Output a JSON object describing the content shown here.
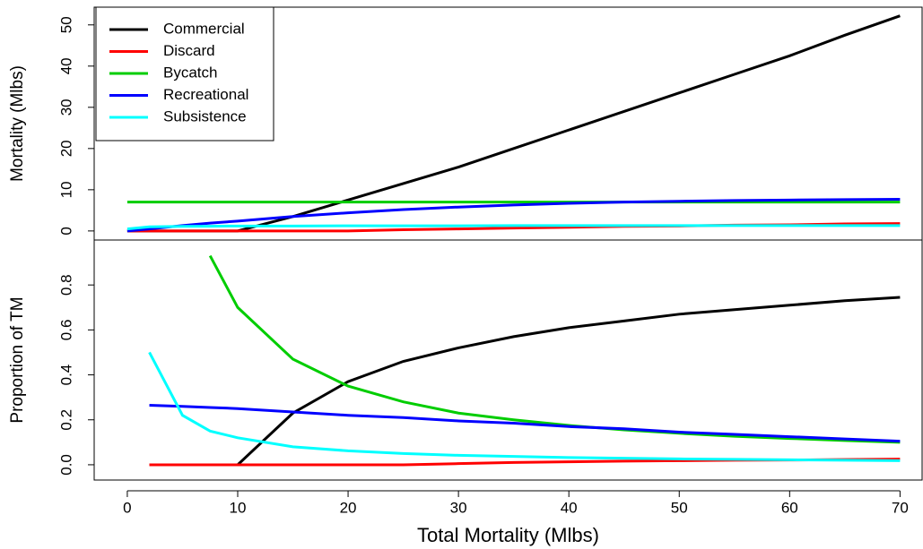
{
  "chart_data": [
    {
      "type": "line",
      "ylabel": "Mortality (Mlbs)",
      "legend": "top-left",
      "x": [
        0,
        2,
        5,
        7.5,
        10,
        15,
        20,
        25,
        30,
        35,
        40,
        45,
        50,
        55,
        60,
        65,
        70
      ],
      "xlim": [
        -3,
        72
      ],
      "ylim": [
        -2.2,
        54.3
      ],
      "yticks": [
        0,
        10,
        20,
        30,
        40,
        50
      ],
      "series": [
        {
          "name": "Commercial",
          "color": "#000000",
          "values": [
            0,
            0,
            0,
            0,
            0,
            3.5,
            7.5,
            11.5,
            15.5,
            20,
            24.5,
            29,
            33.5,
            38,
            42.5,
            47.5,
            52.2
          ]
        },
        {
          "name": "Discard",
          "color": "#ff0000",
          "values": [
            0,
            0,
            0,
            0,
            0,
            0,
            0,
            0.3,
            0.5,
            0.7,
            0.9,
            1.1,
            1.2,
            1.4,
            1.5,
            1.7,
            1.8
          ]
        },
        {
          "name": "Bycatch",
          "color": "#00cd00",
          "values": [
            7,
            7,
            7,
            7,
            7,
            7,
            7,
            7,
            7,
            7,
            7,
            7,
            7,
            7,
            7,
            7,
            7
          ]
        },
        {
          "name": "Recreational",
          "color": "#0000ff",
          "values": [
            0,
            0.5,
            1.3,
            1.9,
            2.4,
            3.5,
            4.4,
            5.2,
            5.8,
            6.3,
            6.7,
            7.0,
            7.2,
            7.4,
            7.5,
            7.6,
            7.7
          ]
        },
        {
          "name": "Subsistence",
          "color": "#00ffff",
          "values": [
            0.5,
            1.0,
            1.1,
            1.15,
            1.2,
            1.2,
            1.25,
            1.25,
            1.25,
            1.3,
            1.3,
            1.3,
            1.3,
            1.3,
            1.3,
            1.3,
            1.3
          ]
        }
      ]
    },
    {
      "type": "line",
      "ylabel": "Proportion of TM",
      "xlabel": "Total Mortality (Mlbs)",
      "x": [
        0,
        2,
        5,
        7.5,
        10,
        15,
        20,
        25,
        30,
        35,
        40,
        45,
        50,
        55,
        60,
        65,
        70
      ],
      "xlim": [
        -3,
        72
      ],
      "ylim": [
        -0.068,
        1.0
      ],
      "xticks": [
        0,
        10,
        20,
        30,
        40,
        50,
        60,
        70
      ],
      "yticks": [
        {
          "value": 0,
          "label": "0.0"
        },
        0.2,
        0.4,
        0.6,
        0.8
      ],
      "series": [
        {
          "color": "#000000",
          "values": [
            null,
            0,
            0,
            0,
            0,
            0.23,
            0.37,
            0.46,
            0.52,
            0.57,
            0.61,
            0.64,
            0.67,
            0.69,
            0.71,
            0.73,
            0.745
          ]
        },
        {
          "color": "#ff0000",
          "values": [
            null,
            0,
            0,
            0,
            0,
            0,
            0,
            0,
            0.005,
            0.01,
            0.013,
            0.016,
            0.018,
            0.02,
            0.021,
            0.023,
            0.025
          ]
        },
        {
          "color": "#00cd00",
          "values": [
            null,
            null,
            null,
            0.93,
            0.7,
            0.47,
            0.35,
            0.28,
            0.23,
            0.2,
            0.175,
            0.155,
            0.14,
            0.127,
            0.117,
            0.108,
            0.1
          ]
        },
        {
          "color": "#0000ff",
          "values": [
            null,
            0.265,
            0.26,
            0.255,
            0.25,
            0.235,
            0.22,
            0.21,
            0.195,
            0.185,
            0.17,
            0.16,
            0.145,
            0.135,
            0.125,
            0.115,
            0.105
          ]
        },
        {
          "color": "#00ffff",
          "values": [
            null,
            0.5,
            0.22,
            0.15,
            0.12,
            0.08,
            0.062,
            0.05,
            0.042,
            0.037,
            0.032,
            0.029,
            0.026,
            0.024,
            0.022,
            0.02,
            0.018
          ]
        }
      ]
    }
  ]
}
